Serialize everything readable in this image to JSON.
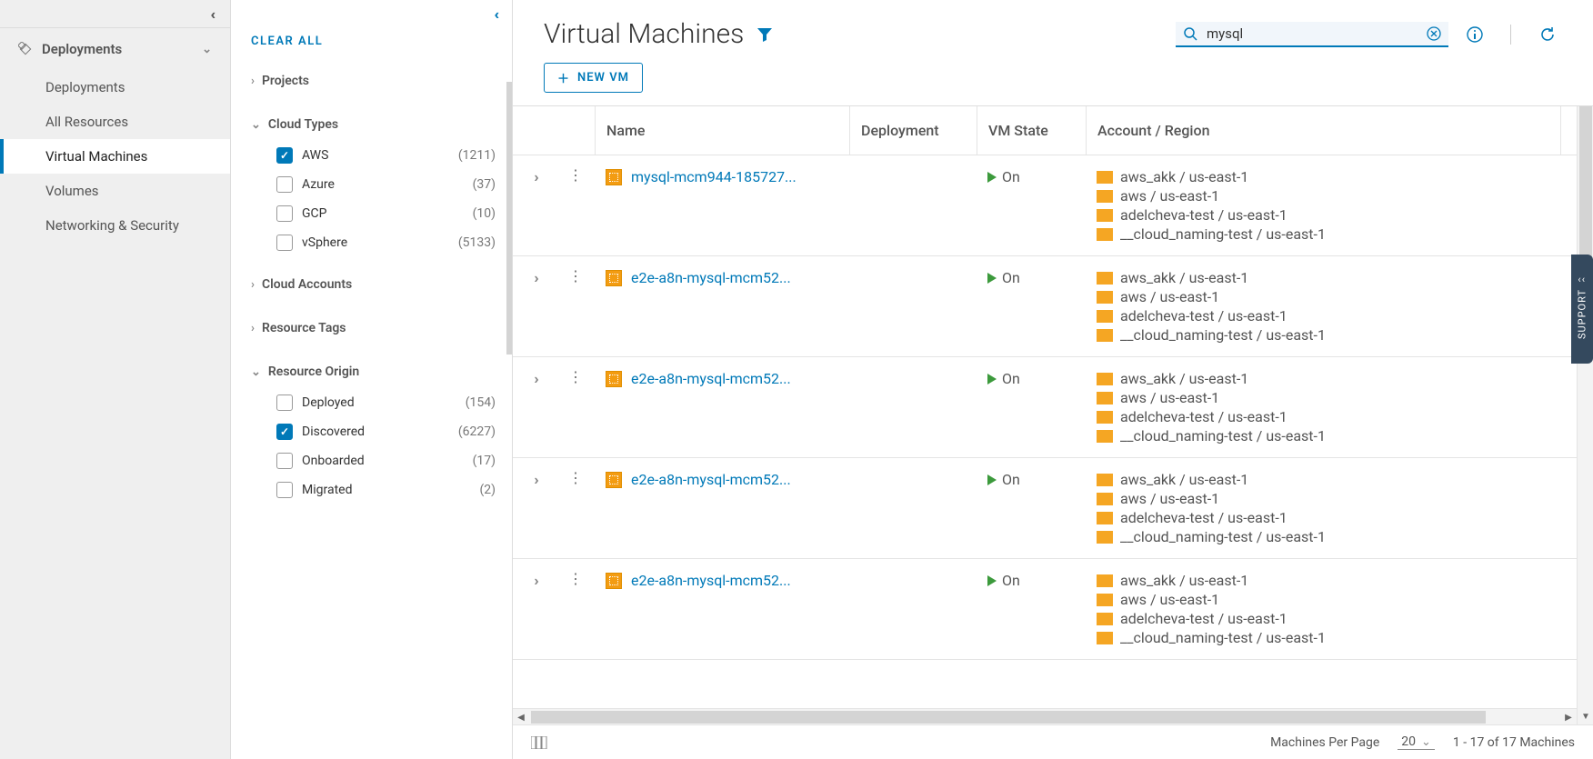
{
  "sidebar": {
    "header": {
      "label": "Deployments"
    },
    "items": [
      {
        "label": "Deployments",
        "active": false
      },
      {
        "label": "All Resources",
        "active": false
      },
      {
        "label": "Virtual Machines",
        "active": true
      },
      {
        "label": "Volumes",
        "active": false
      },
      {
        "label": "Networking & Security",
        "active": false
      }
    ]
  },
  "filters": {
    "clear_all": "CLEAR ALL",
    "sections": {
      "projects": {
        "title": "Projects",
        "expanded": false
      },
      "cloud_types": {
        "title": "Cloud Types",
        "expanded": true,
        "items": [
          {
            "label": "AWS",
            "checked": true,
            "count": "(1211)"
          },
          {
            "label": "Azure",
            "checked": false,
            "count": "(37)"
          },
          {
            "label": "GCP",
            "checked": false,
            "count": "(10)"
          },
          {
            "label": "vSphere",
            "checked": false,
            "count": "(5133)"
          }
        ]
      },
      "cloud_accounts": {
        "title": "Cloud Accounts",
        "expanded": false
      },
      "resource_tags": {
        "title": "Resource Tags",
        "expanded": false
      },
      "resource_origin": {
        "title": "Resource Origin",
        "expanded": true,
        "items": [
          {
            "label": "Deployed",
            "checked": false,
            "count": "(154)"
          },
          {
            "label": "Discovered",
            "checked": true,
            "count": "(6227)"
          },
          {
            "label": "Onboarded",
            "checked": false,
            "count": "(17)"
          },
          {
            "label": "Migrated",
            "checked": false,
            "count": "(2)"
          }
        ]
      }
    }
  },
  "main": {
    "title": "Virtual Machines",
    "search_value": "mysql",
    "new_btn": "NEW VM",
    "columns": {
      "c0": "",
      "c1": "",
      "name": "Name",
      "deployment": "Deployment",
      "vm_state": "VM State",
      "account_region": "Account / Region"
    },
    "accounts_common": [
      "aws_akk / us-east-1",
      "aws / us-east-1",
      "adelcheva-test / us-east-1",
      "__cloud_naming-test / us-east-1"
    ],
    "rows": [
      {
        "name": "mysql-mcm944-185727...",
        "state": "On"
      },
      {
        "name": "e2e-a8n-mysql-mcm52...",
        "state": "On"
      },
      {
        "name": "e2e-a8n-mysql-mcm52...",
        "state": "On"
      },
      {
        "name": "e2e-a8n-mysql-mcm52...",
        "state": "On"
      },
      {
        "name": "e2e-a8n-mysql-mcm52...",
        "state": "On"
      }
    ],
    "footer": {
      "per_page_label": "Machines Per Page",
      "per_page_value": "20",
      "range": "1 - 17 of 17 Machines"
    },
    "support": "SUPPORT"
  }
}
